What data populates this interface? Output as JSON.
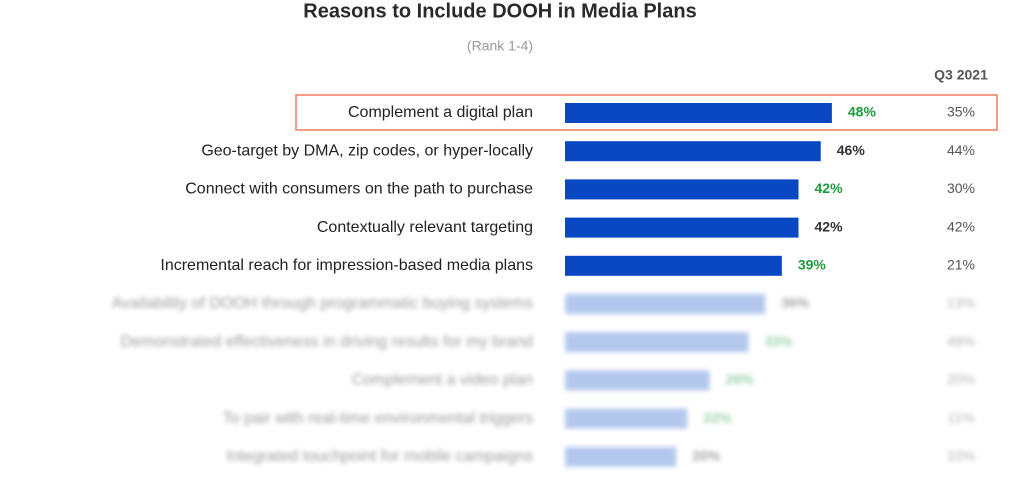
{
  "chart_data": {
    "type": "bar",
    "orientation": "horizontal",
    "title": "Reasons to Include DOOH in Media Plans",
    "subtitle": "(Rank 1-4)",
    "categories": [
      "Complement a digital plan",
      "Geo-target by DMA, zip codes, or hyper-locally",
      "Connect with consumers on the path to purchase",
      "Contextually relevant targeting",
      "Incremental reach for impression-based media plans",
      "Availability of DOOH through programmatic buying systems",
      "Demonstrated effectiveness in driving results for my brand",
      "Complement a video plan",
      "To pair with real-time environmental triggers",
      "Integrated touchpoint for mobile campaigns"
    ],
    "series": [
      {
        "color": "#0a47c2",
        "faded_color": "#5b86da",
        "values": [
          48,
          46,
          42,
          42,
          39,
          36,
          33,
          26,
          22,
          20
        ],
        "value_labels": [
          "48%",
          "46%",
          "42%",
          "42%",
          "39%",
          "36%",
          "33%",
          "26%",
          "22%",
          "20%"
        ],
        "value_label_colors": [
          "#1e9a3c",
          "#333333",
          "#1e9a3c",
          "#333333",
          "#1e9a3c",
          "#333333",
          "#1e9a3c",
          "#1e9a3c",
          "#1e9a3c",
          "#333333"
        ]
      },
      {
        "name": "Q3 2021",
        "values": [
          35,
          44,
          30,
          42,
          21,
          13,
          49,
          20,
          11,
          10
        ],
        "value_labels": [
          "35%",
          "44%",
          "30%",
          "42%",
          "21%",
          "13%",
          "49%",
          "20%",
          "11%",
          "10%"
        ]
      }
    ],
    "highlight": 0,
    "faded_from": 5
  }
}
